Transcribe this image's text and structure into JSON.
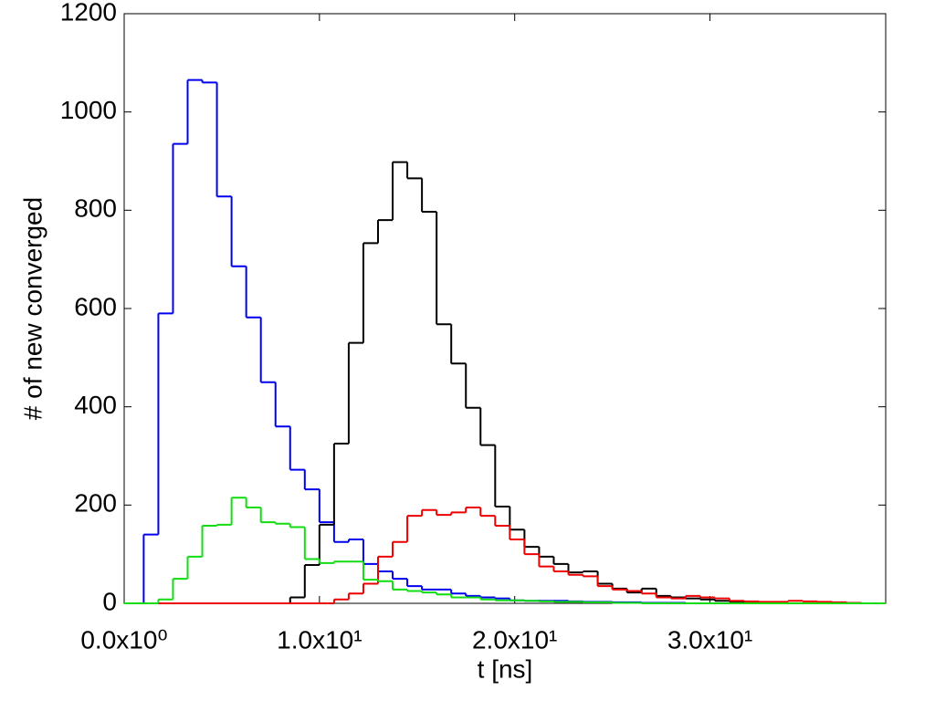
{
  "chart_data": {
    "type": "step-histogram",
    "xlabel": "t [ns]",
    "ylabel": "# of new converged",
    "bins": [
      0.25,
      1,
      1.75,
      2.5,
      3.25,
      4,
      4.75,
      5.5,
      6.25,
      7,
      7.75,
      8.5,
      9.25,
      10,
      10.75,
      11.5,
      12.25,
      13,
      13.75,
      14.5,
      15.25,
      16,
      16.75,
      17.5,
      18.25,
      19,
      19.75,
      20.5,
      21.25,
      22,
      22.75,
      23.5,
      24.25,
      25,
      25.75,
      26.5,
      27.25,
      28,
      28.75,
      29.5,
      30.25,
      31,
      31.75,
      32.5,
      33.25,
      34,
      34.75,
      35.5,
      36.25,
      37,
      37.75,
      38.5
    ],
    "series": [
      {
        "color": "#0000ee",
        "values": [
          0,
          140,
          590,
          935,
          1065,
          1060,
          828,
          686,
          582,
          450,
          360,
          272,
          232,
          165,
          125,
          130,
          80,
          65,
          50,
          35,
          28,
          28,
          20,
          15,
          12,
          10,
          6,
          5,
          5,
          5,
          4,
          3,
          3,
          2,
          2,
          1,
          1,
          1,
          0,
          0,
          0,
          0,
          0,
          0,
          0,
          0,
          0,
          0,
          0,
          0,
          0
        ]
      },
      {
        "color": "#000000",
        "values": [
          0,
          0,
          0,
          0,
          0,
          0,
          0,
          0,
          0,
          0,
          0,
          12,
          78,
          160,
          325,
          530,
          733,
          780,
          898,
          865,
          797,
          568,
          488,
          398,
          322,
          197,
          150,
          115,
          95,
          80,
          63,
          65,
          40,
          30,
          22,
          30,
          15,
          12,
          10,
          8,
          5,
          3,
          2,
          1,
          1,
          0,
          0,
          0,
          0,
          0,
          0
        ]
      },
      {
        "color": "#ee0000",
        "values": [
          0,
          0,
          0,
          0,
          0,
          0,
          0,
          0,
          0,
          0,
          0,
          0,
          0,
          0,
          8,
          20,
          40,
          95,
          125,
          178,
          190,
          180,
          185,
          195,
          178,
          158,
          130,
          100,
          75,
          65,
          58,
          55,
          35,
          28,
          25,
          20,
          12,
          10,
          15,
          12,
          10,
          5,
          4,
          3,
          3,
          5,
          4,
          3,
          2,
          1,
          0
        ]
      },
      {
        "color": "#11dd11",
        "values": [
          0,
          0,
          8,
          50,
          95,
          158,
          160,
          215,
          195,
          165,
          162,
          155,
          90,
          82,
          85,
          85,
          48,
          45,
          28,
          25,
          22,
          18,
          12,
          12,
          8,
          6,
          6,
          5,
          4,
          3,
          3,
          2,
          2,
          1,
          1,
          0,
          0,
          0,
          0,
          0,
          0,
          0,
          0,
          0,
          0,
          0,
          0,
          0,
          0,
          0,
          0
        ]
      }
    ],
    "xlim": [
      0,
      39
    ],
    "xticks": [
      {
        "value": 0,
        "label": "0.0x10⁰"
      },
      {
        "value": 10,
        "label": "1.0x10¹"
      },
      {
        "value": 20,
        "label": "2.0x10¹"
      },
      {
        "value": 30,
        "label": "3.0x10¹"
      }
    ],
    "ylim": [
      0,
      1200
    ],
    "yticks": [
      0,
      200,
      400,
      600,
      800,
      1000,
      1200
    ]
  }
}
